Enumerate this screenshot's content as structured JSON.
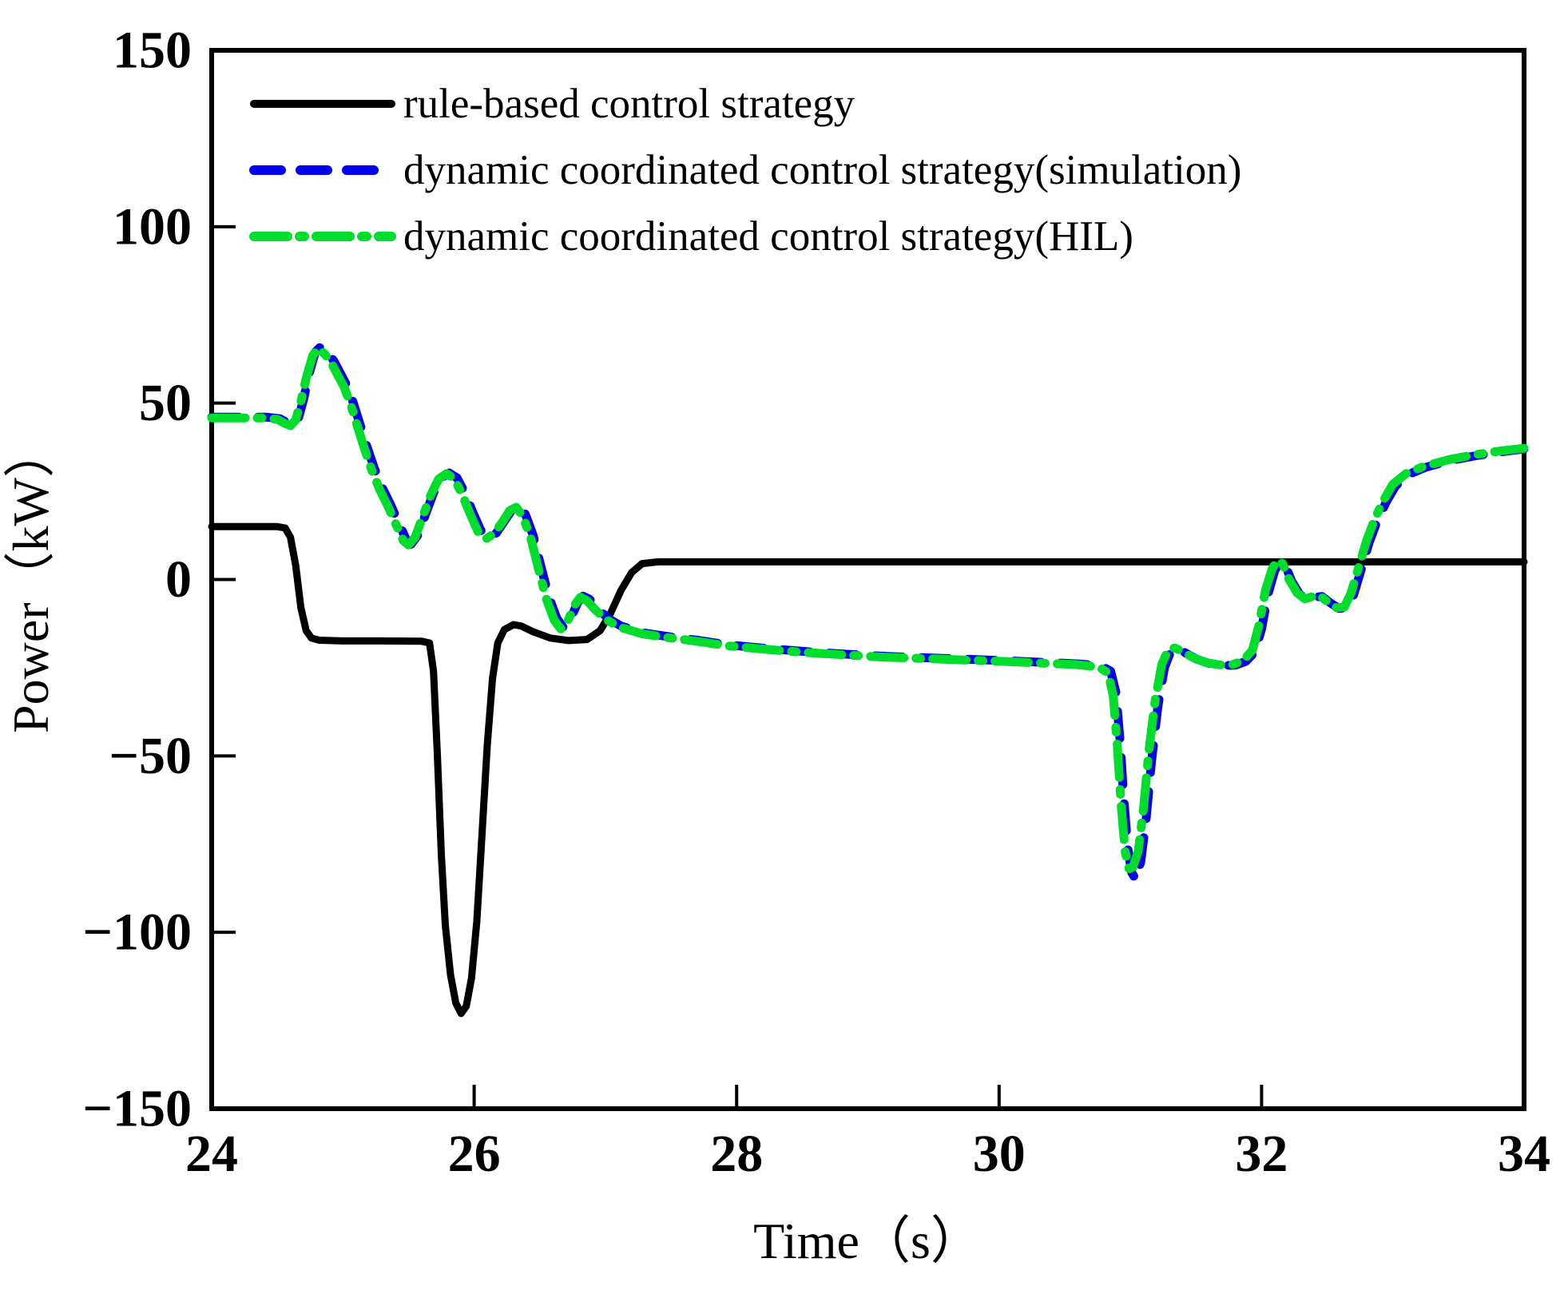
{
  "chart_data": {
    "type": "line",
    "title": "",
    "xlabel": "Time（s）",
    "ylabel": "Power（kW）",
    "grid": false,
    "legend_position": "top-left-inside",
    "x_axis": {
      "range": [
        24,
        34
      ],
      "ticks": [
        {
          "value": 24,
          "label": "24"
        },
        {
          "value": 26,
          "label": "26"
        },
        {
          "value": 28,
          "label": "28"
        },
        {
          "value": 30,
          "label": "30"
        },
        {
          "value": 32,
          "label": "32"
        },
        {
          "value": 34,
          "label": "34"
        }
      ]
    },
    "y_axis": {
      "range": [
        -150,
        150
      ],
      "ticks": [
        {
          "value": 150,
          "label": "150"
        },
        {
          "value": 100,
          "label": "100"
        },
        {
          "value": 50,
          "label": "50"
        },
        {
          "value": 0,
          "label": "0"
        },
        {
          "value": -50,
          "label": "−50"
        },
        {
          "value": -100,
          "label": "−100"
        },
        {
          "value": -150,
          "label": "−150"
        }
      ]
    },
    "series": [
      {
        "name": "rule-based control strategy",
        "color": "#000000",
        "style": "solid",
        "points": [
          [
            24,
            15
          ],
          [
            24.5,
            15
          ],
          [
            24.56,
            14.6
          ],
          [
            24.6,
            12
          ],
          [
            24.64,
            4
          ],
          [
            24.68,
            -8
          ],
          [
            24.72,
            -14.5
          ],
          [
            24.76,
            -16.6
          ],
          [
            24.82,
            -17.2
          ],
          [
            25.0,
            -17.4
          ],
          [
            25.3,
            -17.4
          ],
          [
            25.6,
            -17.5
          ],
          [
            25.66,
            -18
          ],
          [
            25.69,
            -26
          ],
          [
            25.72,
            -50
          ],
          [
            25.75,
            -78
          ],
          [
            25.78,
            -98
          ],
          [
            25.82,
            -112
          ],
          [
            25.86,
            -120
          ],
          [
            25.9,
            -123
          ],
          [
            25.94,
            -121
          ],
          [
            25.98,
            -113
          ],
          [
            26.02,
            -97
          ],
          [
            26.06,
            -72
          ],
          [
            26.1,
            -47
          ],
          [
            26.14,
            -28
          ],
          [
            26.18,
            -18
          ],
          [
            26.23,
            -14.2
          ],
          [
            26.3,
            -12.8
          ],
          [
            26.36,
            -13.2
          ],
          [
            26.45,
            -14.8
          ],
          [
            26.58,
            -16.6
          ],
          [
            26.72,
            -17.3
          ],
          [
            26.86,
            -17
          ],
          [
            26.96,
            -14.5
          ],
          [
            27.04,
            -9.5
          ],
          [
            27.12,
            -3
          ],
          [
            27.2,
            2
          ],
          [
            27.28,
            4.5
          ],
          [
            27.4,
            5
          ],
          [
            28,
            5
          ],
          [
            29,
            5
          ],
          [
            30,
            5
          ],
          [
            31,
            5
          ],
          [
            32,
            5
          ],
          [
            33,
            5
          ],
          [
            34,
            5
          ]
        ]
      },
      {
        "name": "dynamic coordinated control strategy(simulation)",
        "color": "#0000f0",
        "style": "dashed",
        "points": [
          [
            24,
            46
          ],
          [
            24.42,
            46
          ],
          [
            24.52,
            45.6
          ],
          [
            24.58,
            44.4
          ],
          [
            24.62,
            43.8
          ],
          [
            24.66,
            45.5
          ],
          [
            24.7,
            51
          ],
          [
            24.74,
            58
          ],
          [
            24.79,
            64.5
          ],
          [
            24.83,
            66
          ],
          [
            24.88,
            64.5
          ],
          [
            24.93,
            62
          ],
          [
            24.98,
            58.5
          ],
          [
            25.03,
            55
          ],
          [
            25.08,
            50
          ],
          [
            25.13,
            44
          ],
          [
            25.18,
            38
          ],
          [
            25.24,
            31.5
          ],
          [
            25.3,
            26
          ],
          [
            25.36,
            21.5
          ],
          [
            25.42,
            16.5
          ],
          [
            25.48,
            11.5
          ],
          [
            25.52,
            10
          ],
          [
            25.57,
            12.5
          ],
          [
            25.63,
            18.5
          ],
          [
            25.69,
            24.5
          ],
          [
            25.75,
            28.8
          ],
          [
            25.81,
            30.2
          ],
          [
            25.87,
            28.8
          ],
          [
            25.93,
            24.5
          ],
          [
            25.99,
            19
          ],
          [
            26.05,
            14
          ],
          [
            26.11,
            11.8
          ],
          [
            26.17,
            13.2
          ],
          [
            26.23,
            16.5
          ],
          [
            26.29,
            19.8
          ],
          [
            26.34,
            20.8
          ],
          [
            26.39,
            18.5
          ],
          [
            26.45,
            12.5
          ],
          [
            26.51,
            3.5
          ],
          [
            26.57,
            -5
          ],
          [
            26.63,
            -11
          ],
          [
            26.68,
            -13.6
          ],
          [
            26.73,
            -11.5
          ],
          [
            26.79,
            -6.5
          ],
          [
            26.83,
            -4.7
          ],
          [
            26.88,
            -5.6
          ],
          [
            26.94,
            -8.2
          ],
          [
            27.02,
            -11
          ],
          [
            27.12,
            -13.2
          ],
          [
            27.3,
            -15.2
          ],
          [
            27.5,
            -16.3
          ],
          [
            27.7,
            -17.2
          ],
          [
            27.95,
            -18.6
          ],
          [
            28.25,
            -19.6
          ],
          [
            28.55,
            -20.5
          ],
          [
            28.85,
            -21.2
          ],
          [
            29.15,
            -21.8
          ],
          [
            29.45,
            -22.2
          ],
          [
            29.75,
            -22.6
          ],
          [
            30.05,
            -23
          ],
          [
            30.35,
            -23.5
          ],
          [
            30.6,
            -23.9
          ],
          [
            30.78,
            -24.5
          ],
          [
            30.85,
            -26
          ],
          [
            30.89,
            -32
          ],
          [
            30.92,
            -45
          ],
          [
            30.95,
            -62
          ],
          [
            30.98,
            -76
          ],
          [
            31.01,
            -83
          ],
          [
            31.04,
            -85
          ],
          [
            31.08,
            -80
          ],
          [
            31.12,
            -68
          ],
          [
            31.16,
            -52
          ],
          [
            31.21,
            -36
          ],
          [
            31.26,
            -25
          ],
          [
            31.31,
            -20.2
          ],
          [
            31.36,
            -19.6
          ],
          [
            31.42,
            -20.8
          ],
          [
            31.5,
            -22.5
          ],
          [
            31.6,
            -23.8
          ],
          [
            31.7,
            -24.4
          ],
          [
            31.8,
            -24.3
          ],
          [
            31.88,
            -23.2
          ],
          [
            31.95,
            -20.5
          ],
          [
            32.0,
            -14
          ],
          [
            32.05,
            -4
          ],
          [
            32.1,
            2.5
          ],
          [
            32.14,
            5
          ],
          [
            32.18,
            4
          ],
          [
            32.23,
            -0.5
          ],
          [
            32.29,
            -4.2
          ],
          [
            32.35,
            -5.8
          ],
          [
            32.41,
            -5
          ],
          [
            32.46,
            -4.8
          ],
          [
            32.53,
            -6.8
          ],
          [
            32.59,
            -8.2
          ],
          [
            32.65,
            -8
          ],
          [
            32.7,
            -4.5
          ],
          [
            32.76,
            3
          ],
          [
            32.82,
            10.5
          ],
          [
            32.88,
            16.5
          ],
          [
            32.95,
            22
          ],
          [
            33.02,
            26.5
          ],
          [
            33.12,
            29.8
          ],
          [
            33.25,
            31.8
          ],
          [
            33.45,
            33.8
          ],
          [
            33.65,
            35.2
          ],
          [
            33.85,
            36.3
          ],
          [
            34,
            37
          ]
        ]
      },
      {
        "name": "dynamic coordinated control strategy(HIL)",
        "color": "#00dd2c",
        "style": "dashdot",
        "points": [
          [
            24,
            45.8
          ],
          [
            24.4,
            45.8
          ],
          [
            24.5,
            45.4
          ],
          [
            24.56,
            44.2
          ],
          [
            24.6,
            43.6
          ],
          [
            24.64,
            45.2
          ],
          [
            24.68,
            50.5
          ],
          [
            24.72,
            57
          ],
          [
            24.77,
            63.5
          ],
          [
            24.81,
            65.5
          ],
          [
            24.86,
            64
          ],
          [
            24.91,
            61.5
          ],
          [
            24.96,
            58
          ],
          [
            25.01,
            54.5
          ],
          [
            25.06,
            49.5
          ],
          [
            25.11,
            43.5
          ],
          [
            25.16,
            37.5
          ],
          [
            25.22,
            31
          ],
          [
            25.28,
            25.5
          ],
          [
            25.34,
            21
          ],
          [
            25.4,
            16
          ],
          [
            25.46,
            11
          ],
          [
            25.5,
            9.8
          ],
          [
            25.55,
            12
          ],
          [
            25.61,
            18
          ],
          [
            25.67,
            24
          ],
          [
            25.73,
            28.5
          ],
          [
            25.79,
            30
          ],
          [
            25.85,
            28.5
          ],
          [
            25.91,
            24
          ],
          [
            25.97,
            18.5
          ],
          [
            26.03,
            13.5
          ],
          [
            26.09,
            11.5
          ],
          [
            26.15,
            13
          ],
          [
            26.21,
            16
          ],
          [
            26.27,
            19.5
          ],
          [
            26.32,
            20.5
          ],
          [
            26.37,
            18
          ],
          [
            26.43,
            12
          ],
          [
            26.49,
            3
          ],
          [
            26.55,
            -5.5
          ],
          [
            26.61,
            -11.5
          ],
          [
            26.66,
            -14
          ],
          [
            26.71,
            -12
          ],
          [
            26.77,
            -7
          ],
          [
            26.81,
            -5
          ],
          [
            26.86,
            -6
          ],
          [
            26.92,
            -8.5
          ],
          [
            27.0,
            -11.2
          ],
          [
            27.1,
            -13.4
          ],
          [
            27.28,
            -15.4
          ],
          [
            27.48,
            -16.5
          ],
          [
            27.68,
            -17.4
          ],
          [
            27.93,
            -18.8
          ],
          [
            28.23,
            -19.8
          ],
          [
            28.53,
            -20.7
          ],
          [
            28.83,
            -21.4
          ],
          [
            29.13,
            -22
          ],
          [
            29.43,
            -22.4
          ],
          [
            29.73,
            -22.8
          ],
          [
            30.03,
            -23.2
          ],
          [
            30.33,
            -23.7
          ],
          [
            30.58,
            -24.1
          ],
          [
            30.76,
            -24.8
          ],
          [
            30.83,
            -26.5
          ],
          [
            30.87,
            -33
          ],
          [
            30.9,
            -47
          ],
          [
            30.93,
            -64
          ],
          [
            30.96,
            -77
          ],
          [
            30.99,
            -82
          ],
          [
            31.02,
            -81.5
          ],
          [
            31.06,
            -77
          ],
          [
            31.1,
            -65
          ],
          [
            31.14,
            -49
          ],
          [
            31.19,
            -34
          ],
          [
            31.24,
            -24
          ],
          [
            31.29,
            -19.8
          ],
          [
            31.34,
            -19.4
          ],
          [
            31.4,
            -20.5
          ],
          [
            31.48,
            -22.2
          ],
          [
            31.58,
            -23.6
          ],
          [
            31.68,
            -24.2
          ],
          [
            31.78,
            -24.1
          ],
          [
            31.86,
            -23
          ],
          [
            31.93,
            -20
          ],
          [
            31.98,
            -13
          ],
          [
            32.03,
            -3
          ],
          [
            32.08,
            3
          ],
          [
            32.12,
            5.5
          ],
          [
            32.16,
            4.5
          ],
          [
            32.21,
            0
          ],
          [
            32.27,
            -3.8
          ],
          [
            32.33,
            -5.5
          ],
          [
            32.39,
            -4.8
          ],
          [
            32.44,
            -4.5
          ],
          [
            32.51,
            -6.5
          ],
          [
            32.57,
            -8
          ],
          [
            32.63,
            -7.8
          ],
          [
            32.68,
            -4
          ],
          [
            32.74,
            3.5
          ],
          [
            32.8,
            11
          ],
          [
            32.86,
            17
          ],
          [
            32.93,
            22.5
          ],
          [
            33.0,
            27
          ],
          [
            33.1,
            30
          ],
          [
            33.23,
            32
          ],
          [
            33.43,
            34
          ],
          [
            33.63,
            35.4
          ],
          [
            33.83,
            36.5
          ],
          [
            34,
            37.2
          ]
        ]
      }
    ]
  }
}
